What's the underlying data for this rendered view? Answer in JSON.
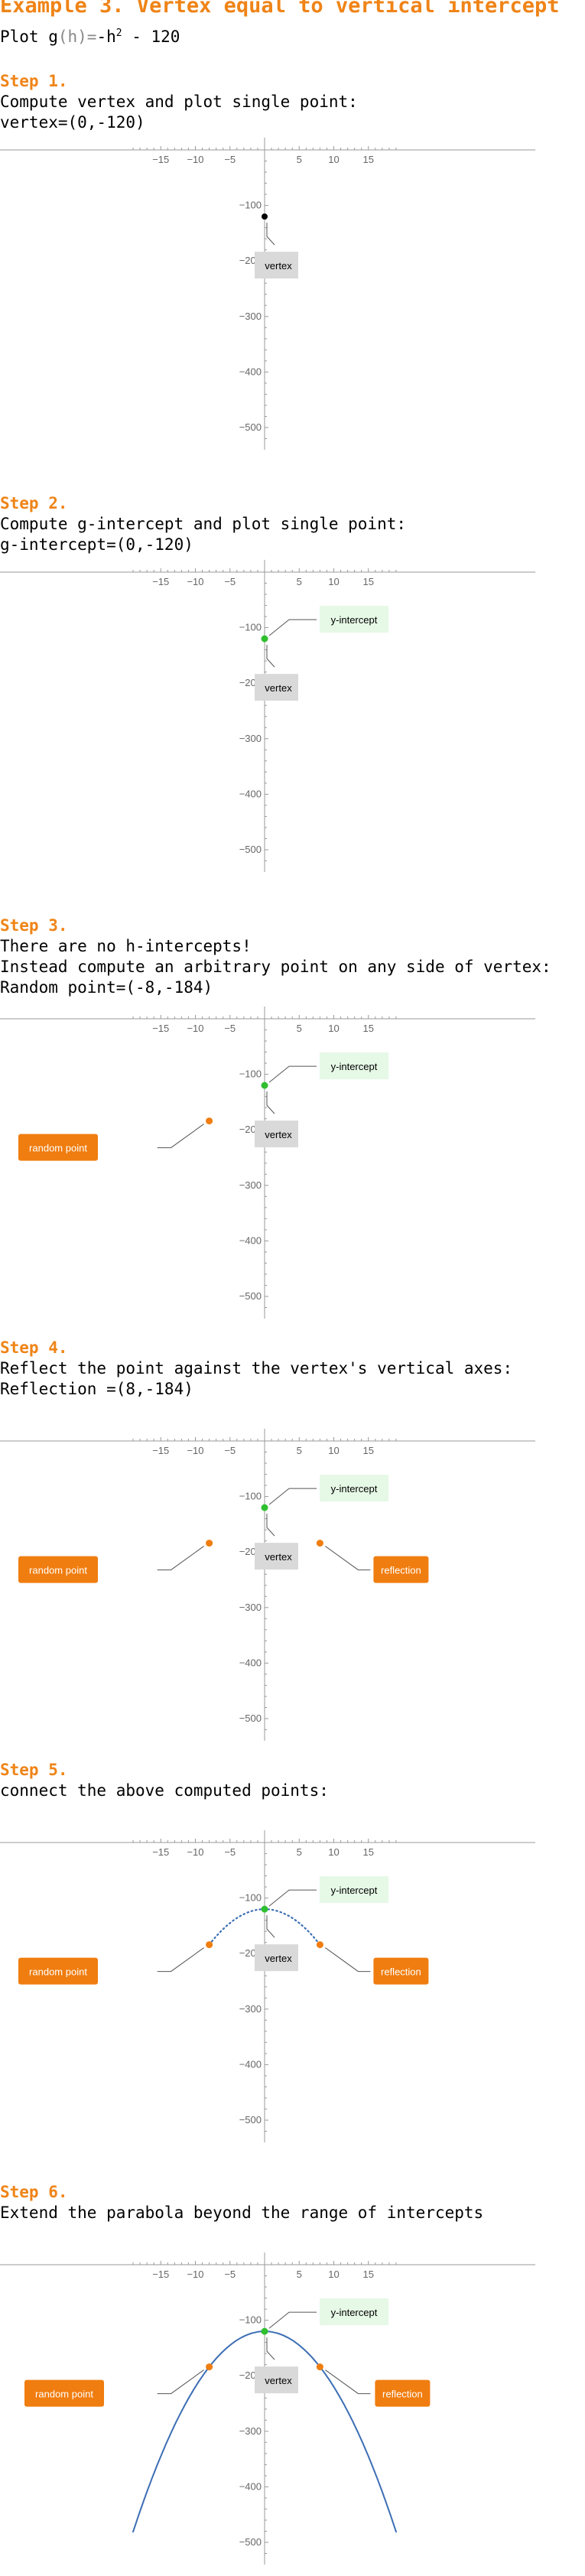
{
  "header": {
    "title": "Example 3. Vertex equal to vertical intercept",
    "function_line": {
      "prefix": "Plot g",
      "arg": "(h)",
      "eq": "=",
      "expr_a": "-h",
      "exponent": "2",
      "expr_b": " - 120"
    }
  },
  "steps": [
    {
      "heading": "Step 1.",
      "lines": [
        "Compute vertex and plot single point:",
        "vertex=(0,-120)"
      ]
    },
    {
      "heading": "Step 2.",
      "lines": [
        "Compute g-intercept and plot single point:",
        "g-intercept=(0,-120)"
      ]
    },
    {
      "heading": "Step 3.",
      "lines": [
        "There are no h-intercepts!",
        "Instead compute an arbitrary point on any side of vertex:",
        "Random point=(-8,-184)"
      ]
    },
    {
      "heading": "Step 4.",
      "lines": [
        "Reflect the point against the vertex's vertical axes:",
        "Reflection =(8,-184)"
      ]
    },
    {
      "heading": "Step 5.",
      "lines": [
        "connect the above computed points:"
      ]
    },
    {
      "heading": "Step 6.",
      "lines": [
        "Extend the parabola beyond the range of intercepts"
      ]
    }
  ],
  "callouts": {
    "vertex": "vertex",
    "y_intercept": "y-intercept",
    "random_point": "random point",
    "reflection": "reflection"
  },
  "colors": {
    "accent": "#ef8417",
    "vertex_point": "#000000",
    "intercept_point": "#2fbf2f",
    "curve": "#3c6eb4",
    "vertex_box": "#d9d9d9",
    "intercept_box": "#e6f8e6",
    "orange_box": "#f07d0f"
  },
  "chart_data": [
    {
      "type": "scatter",
      "xlim": [
        -19,
        19
      ],
      "ylim": [
        -520,
        0
      ],
      "xticks": [
        -15,
        -10,
        -5,
        5,
        10,
        15
      ],
      "yticks": [
        -100,
        -200,
        -300,
        -400,
        -500
      ],
      "points": [
        {
          "label": "vertex",
          "x": 0,
          "y": -120
        }
      ]
    },
    {
      "type": "scatter",
      "xlim": [
        -19,
        19
      ],
      "ylim": [
        -520,
        0
      ],
      "xticks": [
        -15,
        -10,
        -5,
        5,
        10,
        15
      ],
      "yticks": [
        -100,
        -200,
        -300,
        -400,
        -500
      ],
      "points": [
        {
          "label": "vertex",
          "x": 0,
          "y": -120
        },
        {
          "label": "y-intercept",
          "x": 0,
          "y": -120
        }
      ]
    },
    {
      "type": "scatter",
      "xlim": [
        -19,
        19
      ],
      "ylim": [
        -520,
        0
      ],
      "xticks": [
        -15,
        -10,
        -5,
        5,
        10,
        15
      ],
      "yticks": [
        -100,
        -200,
        -300,
        -400,
        -500
      ],
      "points": [
        {
          "label": "vertex",
          "x": 0,
          "y": -120
        },
        {
          "label": "y-intercept",
          "x": 0,
          "y": -120
        },
        {
          "label": "random point",
          "x": -8,
          "y": -184
        }
      ]
    },
    {
      "type": "scatter",
      "xlim": [
        -19,
        19
      ],
      "ylim": [
        -520,
        0
      ],
      "xticks": [
        -15,
        -10,
        -5,
        5,
        10,
        15
      ],
      "yticks": [
        -100,
        -200,
        -300,
        -400,
        -500
      ],
      "points": [
        {
          "label": "vertex",
          "x": 0,
          "y": -120
        },
        {
          "label": "y-intercept",
          "x": 0,
          "y": -120
        },
        {
          "label": "random point",
          "x": -8,
          "y": -184
        },
        {
          "label": "reflection",
          "x": 8,
          "y": -184
        }
      ]
    },
    {
      "type": "line",
      "xlim": [
        -19,
        19
      ],
      "ylim": [
        -520,
        0
      ],
      "xticks": [
        -15,
        -10,
        -5,
        5,
        10,
        15
      ],
      "yticks": [
        -100,
        -200,
        -300,
        -400,
        -500
      ],
      "line_style": "dotted",
      "curve_domain": [
        -8,
        8
      ],
      "points": [
        {
          "label": "vertex",
          "x": 0,
          "y": -120
        },
        {
          "label": "y-intercept",
          "x": 0,
          "y": -120
        },
        {
          "label": "random point",
          "x": -8,
          "y": -184
        },
        {
          "label": "reflection",
          "x": 8,
          "y": -184
        }
      ]
    },
    {
      "type": "line",
      "xlim": [
        -19,
        19
      ],
      "ylim": [
        -520,
        0
      ],
      "xticks": [
        -15,
        -10,
        -5,
        5,
        10,
        15
      ],
      "yticks": [
        -100,
        -200,
        -300,
        -400,
        -500
      ],
      "line_style": "solid",
      "curve_domain": [
        -19,
        19
      ],
      "points": [
        {
          "label": "vertex",
          "x": 0,
          "y": -120
        },
        {
          "label": "y-intercept",
          "x": 0,
          "y": -120
        },
        {
          "label": "random point",
          "x": -8,
          "y": -184
        },
        {
          "label": "reflection",
          "x": 8,
          "y": -184
        }
      ]
    }
  ]
}
